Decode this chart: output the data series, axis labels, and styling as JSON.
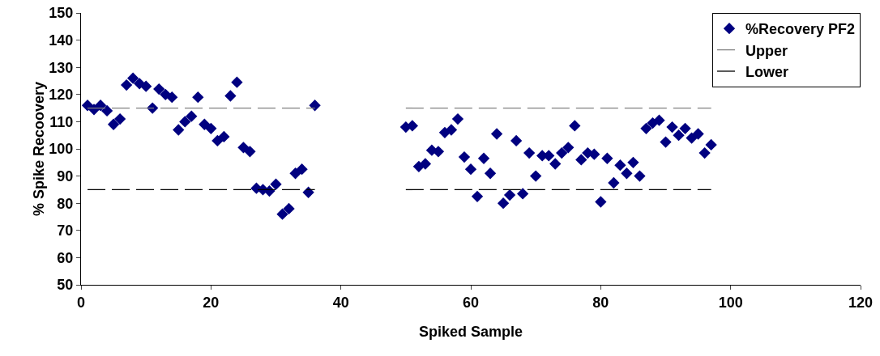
{
  "chart_data": {
    "type": "scatter",
    "xlabel": "Spiked Sample",
    "ylabel": "% Spike Recoovery",
    "xlim": [
      0,
      120
    ],
    "xticks": [
      0,
      20,
      40,
      60,
      80,
      100,
      120
    ],
    "ylim": [
      50,
      150
    ],
    "yticks": [
      50,
      60,
      70,
      80,
      90,
      100,
      110,
      120,
      130,
      140,
      150
    ],
    "grid": false,
    "legend": "top right",
    "marker": "diamond",
    "series": [
      {
        "name": "%Recovery PF2",
        "color": "#000080",
        "x": [
          1,
          2,
          3,
          4,
          5,
          6,
          7,
          8,
          9,
          10,
          11,
          12,
          13,
          14,
          15,
          16,
          17,
          18,
          19,
          20,
          21,
          22,
          23,
          24,
          25,
          26,
          27,
          28,
          29,
          30,
          31,
          32,
          33,
          34,
          35,
          36,
          50,
          51,
          52,
          53,
          54,
          55,
          56,
          57,
          58,
          59,
          60,
          61,
          62,
          63,
          64,
          65,
          66,
          67,
          68,
          69,
          70,
          71,
          72,
          73,
          74,
          75,
          76,
          77,
          78,
          79,
          80,
          81,
          82,
          83,
          84,
          85,
          86,
          87,
          88,
          89,
          90,
          91,
          92,
          93,
          94,
          95,
          96,
          97
        ],
        "values": [
          116,
          114.5,
          116,
          114,
          109,
          111,
          123.5,
          126,
          124,
          123,
          115,
          122,
          120,
          119,
          107,
          110,
          112,
          119,
          109,
          107.5,
          103,
          104.5,
          119.5,
          124.5,
          100.5,
          99,
          85.5,
          85,
          84.5,
          87,
          76,
          78,
          91,
          92.5,
          84,
          116,
          108,
          108.5,
          93.5,
          94.5,
          99.5,
          99,
          106,
          107,
          111,
          97,
          92.5,
          82.5,
          96.5,
          91,
          105.5,
          80,
          83,
          103,
          83.5,
          98.5,
          90,
          97.5,
          97.5,
          94.5,
          98.5,
          100.5,
          108.5,
          96,
          98.5,
          98,
          80.5,
          96.5,
          87.5,
          94,
          91,
          95,
          90,
          107.5,
          109.5,
          110.5,
          102.5,
          108,
          105,
          107.5,
          104,
          105.5,
          98.5,
          101.5
        ]
      },
      {
        "name": "Upper",
        "type": "line",
        "line_style": "dashed",
        "marker": "none",
        "color": "#808080",
        "x": [
          1,
          36,
          43,
          50,
          97
        ],
        "values": [
          115,
          115,
          null,
          115,
          115
        ]
      },
      {
        "name": "Lower",
        "type": "line",
        "line_style": "dashed",
        "marker": "none",
        "color": "#000000",
        "x": [
          1,
          36,
          43,
          50,
          97
        ],
        "values": [
          85,
          85,
          null,
          85,
          85
        ]
      }
    ]
  }
}
